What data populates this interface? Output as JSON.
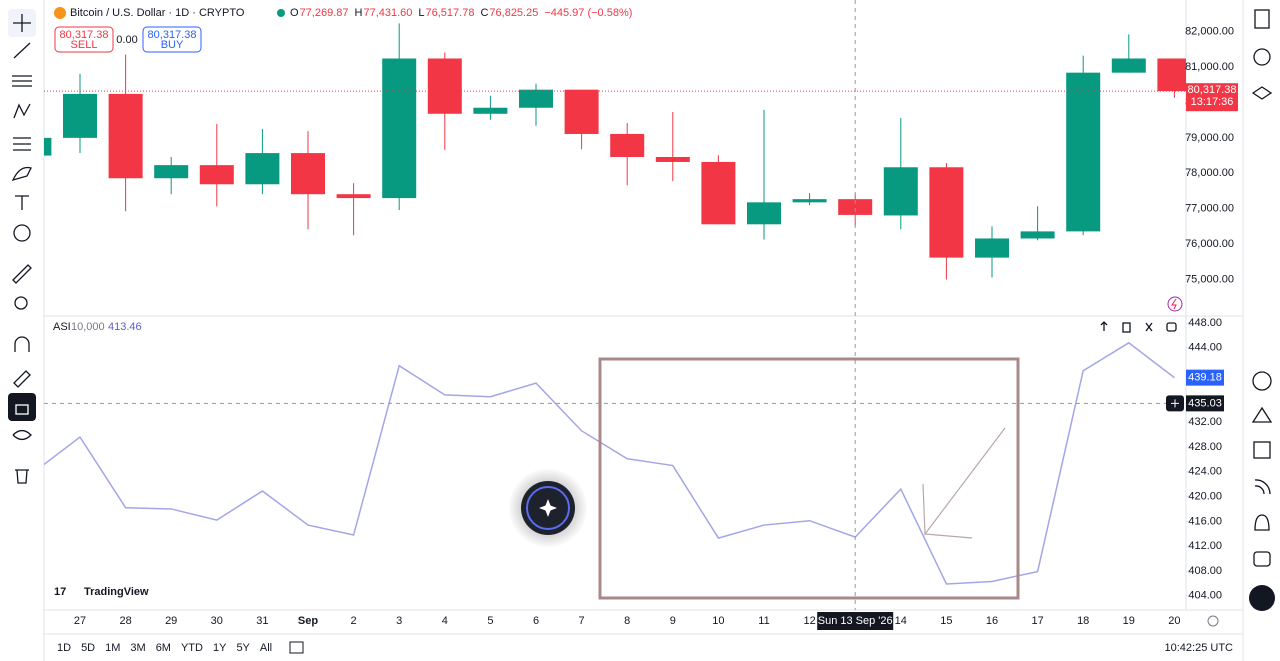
{
  "header": {
    "symbol": "Bitcoin / U.S. Dollar · 1D · CRYPTO",
    "ohlc": [
      {
        "key": "O",
        "value": "77,269.87"
      },
      {
        "key": "H",
        "value": "77,431.60"
      },
      {
        "key": "L",
        "value": "76,517.78"
      },
      {
        "key": "C",
        "value": "76,825.25"
      }
    ],
    "change": "−445.97 (−0.58%)"
  },
  "trade": {
    "sell_price": "80,317.38",
    "sell": "SELL",
    "spread": "0.00",
    "buy_price": "80,317.38",
    "buy": "BUY"
  },
  "price_label": {
    "price": "80,317.38",
    "countdown": "13:17:36"
  },
  "indicator": {
    "name": "ASI",
    "param": "10,000"
  },
  "crosshair_date": "Sun 13 Sep '26",
  "watermark": "TradingView",
  "timeframes": [
    "1D",
    "5D",
    "1M",
    "3M",
    "6M",
    "YTD",
    "1Y",
    "5Y",
    "All"
  ],
  "clock": "10:42:25 UTC",
  "chart_data": [
    {
      "type": "candlestick",
      "categories": [
        null,
        "27",
        "28",
        "29",
        "30",
        "31",
        "Sep",
        "2",
        "3",
        "4",
        "5",
        "6",
        "7",
        "8",
        "9",
        "10",
        "11",
        "12",
        "13",
        "14",
        "15",
        "16",
        "17",
        "18",
        "19",
        "20"
      ],
      "open": [
        78500,
        79000,
        80240,
        77860,
        78230,
        77690,
        78570,
        77410,
        77300,
        81240,
        79680,
        79850,
        80360,
        79110,
        78460,
        78320,
        76560,
        77180,
        77269.87,
        76810,
        78170,
        75620,
        76160,
        76360,
        80840,
        81240
      ],
      "high": [
        79050,
        80810,
        81350,
        78460,
        79390,
        79250,
        79190,
        77720,
        82230,
        81410,
        80190,
        80530,
        80360,
        79420,
        79730,
        78510,
        79790,
        77440,
        77431.6,
        79560,
        78290,
        76500,
        77070,
        81320,
        81920,
        81240
      ],
      "low": [
        78500,
        78570,
        76930,
        77410,
        77070,
        77410,
        76420,
        76250,
        76960,
        78660,
        79510,
        79340,
        78680,
        77660,
        77780,
        76560,
        76130,
        77100,
        76517.78,
        76420,
        75000,
        75060,
        76110,
        76250,
        80840,
        80130
      ],
      "close": [
        79000,
        80240,
        77860,
        78230,
        77690,
        78570,
        77410,
        77300,
        81240,
        79680,
        79850,
        80360,
        79110,
        78460,
        78320,
        76560,
        77180,
        77270,
        76825.25,
        78170,
        75620,
        76160,
        76360,
        80840,
        81240,
        80317.38
      ],
      "up_color": "#089981",
      "down_color": "#f23645",
      "ylim": [
        74000,
        82750
      ],
      "yticks": [
        {
          "value": 75000,
          "label": "75,000.00"
        },
        {
          "value": 76000,
          "label": "76,000.00"
        },
        {
          "value": 77000,
          "label": "77,000.00"
        },
        {
          "value": 78000,
          "label": "78,000.00"
        },
        {
          "value": 79000,
          "label": "79,000.00"
        },
        {
          "value": 80000,
          "label": "80,000.00"
        },
        {
          "value": 81000,
          "label": "81,000.00"
        },
        {
          "value": 82000,
          "label": "82,000.00"
        }
      ],
      "grid": false
    },
    {
      "type": "line",
      "values": [
        424.0,
        429.6,
        418.2,
        418.0,
        416.2,
        420.9,
        415.4,
        413.8,
        441.1,
        436.4,
        436.1,
        438.3,
        430.6,
        426.1,
        425.0,
        413.3,
        415.4,
        416.1,
        413.46,
        421.2,
        405.9,
        406.3,
        407.9,
        440.3,
        444.8,
        439.18
      ],
      "color": "#a3a6e6",
      "ylim": [
        401.7,
        448.8
      ],
      "yticks": [
        {
          "value": 404,
          "label": "404.00"
        },
        {
          "value": 408,
          "label": "408.00"
        },
        {
          "value": 412,
          "label": "412.00"
        },
        {
          "value": 416,
          "label": "416.00"
        },
        {
          "value": 420,
          "label": "420.00"
        },
        {
          "value": 424,
          "label": "424.00"
        },
        {
          "value": 428,
          "label": "428.00"
        },
        {
          "value": 432,
          "label": "432.00"
        },
        {
          "value": 444,
          "label": "444.00"
        },
        {
          "value": 448,
          "label": "448.00"
        }
      ],
      "crosshair": 435.03,
      "grid": false
    }
  ]
}
